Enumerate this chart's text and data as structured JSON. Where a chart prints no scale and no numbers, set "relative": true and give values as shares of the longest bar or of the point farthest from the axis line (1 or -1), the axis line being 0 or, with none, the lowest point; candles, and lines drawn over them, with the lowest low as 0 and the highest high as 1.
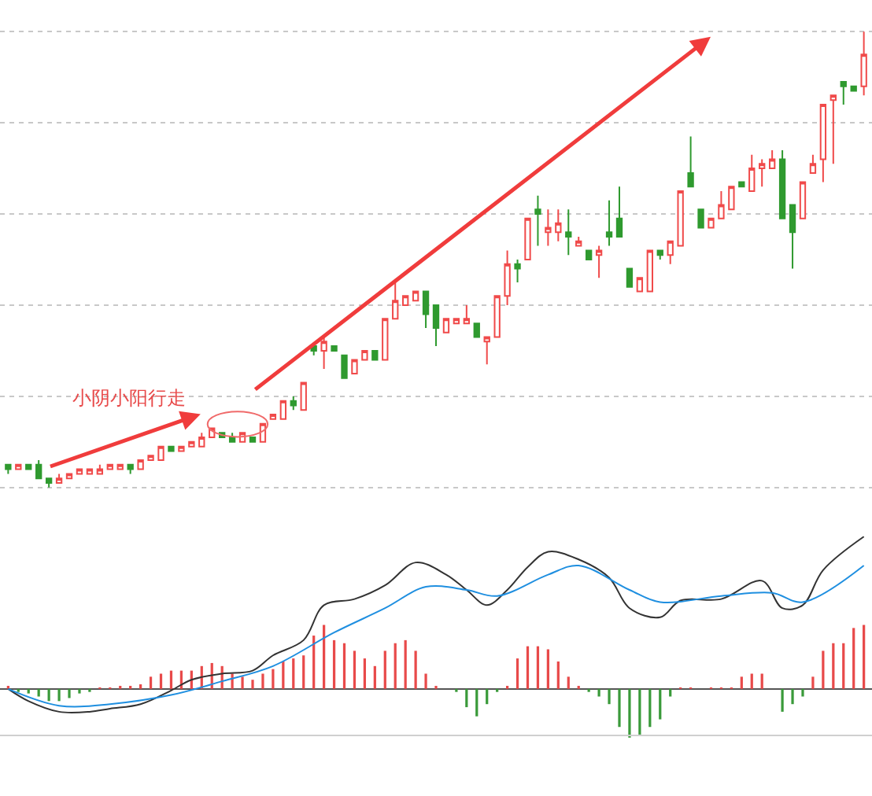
{
  "chart_data": [
    {
      "type": "candlestick",
      "relative": true,
      "grid": "y",
      "legend": false,
      "annotations": [
        "小阴小阳行走"
      ],
      "categories": [
        null,
        null,
        null,
        null,
        null,
        null,
        null,
        null,
        null,
        null,
        null,
        null,
        null,
        null,
        null,
        null,
        null,
        null,
        null,
        null,
        null,
        null,
        null,
        null,
        null,
        null,
        null,
        null,
        null,
        null,
        null,
        null,
        null,
        null,
        null,
        null,
        null,
        null,
        null,
        null,
        null,
        null,
        null,
        null,
        null,
        null,
        null,
        null,
        null,
        null,
        null,
        null,
        null,
        null,
        null,
        null,
        null,
        null,
        null,
        null,
        null,
        null,
        null,
        null,
        null,
        null,
        null,
        null,
        null,
        null,
        null,
        null,
        null,
        null,
        null,
        null,
        null,
        null,
        null,
        null,
        null,
        null,
        null,
        null,
        null
      ],
      "series": [
        {
          "colors": [
            "#2f9a2f",
            "#f04a4a",
            "#2f9a2f",
            "#2f9a2f",
            "#2f9a2f",
            "#f04a4a",
            "#f04a4a",
            "#f04a4a",
            "#f04a4a",
            "#f04a4a",
            "#f04a4a",
            "#f04a4a",
            "#2f9a2f",
            "#f04a4a",
            "#f04a4a",
            "#f04a4a",
            "#2f9a2f",
            "#f04a4a",
            "#f04a4a",
            "#f04a4a",
            "#f04a4a",
            "#2f9a2f",
            "#2f9a2f",
            "#f04a4a",
            "#2f9a2f",
            "#f04a4a",
            "#f04a4a",
            "#f04a4a",
            "#2f9a2f",
            "#f04a4a",
            "#2f9a2f",
            "#f04a4a",
            "#2f9a2f",
            "#2f9a2f",
            "#f04a4a",
            "#f04a4a",
            "#2f9a2f",
            "#f04a4a",
            "#f04a4a",
            "#f04a4a",
            "#f04a4a",
            "#2f9a2f",
            "#2f9a2f",
            "#f04a4a",
            "#f04a4a",
            "#f04a4a",
            "#2f9a2f",
            "#f04a4a",
            "#f04a4a",
            "#f04a4a",
            "#2f9a2f",
            "#f04a4a",
            "#2f9a2f",
            "#f04a4a",
            "#f04a4a",
            "#2f9a2f",
            "#f04a4a",
            "#2f9a2f",
            "#f04a4a",
            "#2f9a2f",
            "#2f9a2f",
            "#2f9a2f",
            "#f04a4a",
            "#f04a4a",
            "#2f9a2f",
            "#f04a4a",
            "#f04a4a",
            "#2f9a2f",
            "#2f9a2f",
            "#f04a4a",
            "#f04a4a",
            "#f04a4a",
            "#2f9a2f",
            "#f04a4a",
            "#f04a4a",
            "#f04a4a",
            "#2f9a2f",
            "#2f9a2f",
            "#f04a4a",
            "#f04a4a",
            "#f04a4a",
            "#f04a4a",
            "#2f9a2f",
            "#2f9a2f",
            "#f04a4a"
          ],
          "ohlc": [
            [
              0.05,
              0.05,
              0.03,
              0.04
            ],
            [
              0.04,
              0.05,
              0.04,
              0.05
            ],
            [
              0.05,
              0.05,
              0.04,
              0.04
            ],
            [
              0.05,
              0.06,
              0.02,
              0.02
            ],
            [
              0.02,
              0.02,
              0,
              0.01
            ],
            [
              0.01,
              0.03,
              0.01,
              0.02
            ],
            [
              0.02,
              0.03,
              0.02,
              0.03
            ],
            [
              0.03,
              0.04,
              0.03,
              0.04
            ],
            [
              0.03,
              0.04,
              0.03,
              0.04
            ],
            [
              0.03,
              0.05,
              0.03,
              0.04
            ],
            [
              0.04,
              0.05,
              0.04,
              0.05
            ],
            [
              0.04,
              0.05,
              0.04,
              0.05
            ],
            [
              0.05,
              0.05,
              0.03,
              0.04
            ],
            [
              0.04,
              0.06,
              0.04,
              0.06
            ],
            [
              0.06,
              0.07,
              0.06,
              0.07
            ],
            [
              0.06,
              0.09,
              0.06,
              0.09
            ],
            [
              0.09,
              0.09,
              0.08,
              0.08
            ],
            [
              0.08,
              0.09,
              0.08,
              0.09
            ],
            [
              0.09,
              0.1,
              0.09,
              0.1
            ],
            [
              0.09,
              0.12,
              0.09,
              0.11
            ],
            [
              0.11,
              0.13,
              0.11,
              0.13
            ],
            [
              0.12,
              0.12,
              0.11,
              0.11
            ],
            [
              0.11,
              0.12,
              0.1,
              0.1
            ],
            [
              0.1,
              0.12,
              0.1,
              0.12
            ],
            [
              0.11,
              0.11,
              0.1,
              0.1
            ],
            [
              0.1,
              0.14,
              0.1,
              0.14
            ],
            [
              0.15,
              0.16,
              0.15,
              0.16
            ],
            [
              0.15,
              0.19,
              0.15,
              0.19
            ],
            [
              0.19,
              0.2,
              0.17,
              0.18
            ],
            [
              0.17,
              0.23,
              0.17,
              0.23
            ],
            [
              0.31,
              0.31,
              0.29,
              0.3
            ],
            [
              0.3,
              0.33,
              0.26,
              0.32
            ],
            [
              0.31,
              0.31,
              0.3,
              0.3
            ],
            [
              0.29,
              0.29,
              0.24,
              0.24
            ],
            [
              0.25,
              0.28,
              0.25,
              0.28
            ],
            [
              0.28,
              0.3,
              0.28,
              0.3
            ],
            [
              0.3,
              0.3,
              0.28,
              0.28
            ],
            [
              0.28,
              0.37,
              0.28,
              0.37
            ],
            [
              0.37,
              0.45,
              0.37,
              0.41
            ],
            [
              0.4,
              0.42,
              0.4,
              0.42
            ],
            [
              0.41,
              0.43,
              0.41,
              0.43
            ],
            [
              0.43,
              0.43,
              0.35,
              0.38
            ],
            [
              0.4,
              0.4,
              0.31,
              0.35
            ],
            [
              0.34,
              0.37,
              0.34,
              0.37
            ],
            [
              0.36,
              0.37,
              0.36,
              0.37
            ],
            [
              0.36,
              0.4,
              0.36,
              0.37
            ],
            [
              0.36,
              0.36,
              0.33,
              0.33
            ],
            [
              0.32,
              0.33,
              0.27,
              0.33
            ],
            [
              0.33,
              0.42,
              0.33,
              0.42
            ],
            [
              0.42,
              0.52,
              0.4,
              0.49
            ],
            [
              0.49,
              0.5,
              0.45,
              0.48
            ],
            [
              0.5,
              0.59,
              0.5,
              0.59
            ],
            [
              0.61,
              0.64,
              0.53,
              0.6
            ],
            [
              0.56,
              0.61,
              0.53,
              0.57
            ],
            [
              0.56,
              0.61,
              0.54,
              0.58
            ],
            [
              0.56,
              0.61,
              0.51,
              0.55
            ],
            [
              0.53,
              0.55,
              0.53,
              0.54
            ],
            [
              0.52,
              0.52,
              0.5,
              0.5
            ],
            [
              0.51,
              0.53,
              0.46,
              0.52
            ],
            [
              0.56,
              0.63,
              0.53,
              0.55
            ],
            [
              0.59,
              0.66,
              0.55,
              0.55
            ],
            [
              0.48,
              0.48,
              0.44,
              0.44
            ],
            [
              0.43,
              0.46,
              0.43,
              0.46
            ],
            [
              0.43,
              0.52,
              0.43,
              0.52
            ],
            [
              0.52,
              0.52,
              0.5,
              0.51
            ],
            [
              0.51,
              0.54,
              0.49,
              0.54
            ],
            [
              0.53,
              0.65,
              0.53,
              0.65
            ],
            [
              0.69,
              0.77,
              0.66,
              0.66
            ],
            [
              0.61,
              0.61,
              0.57,
              0.57
            ],
            [
              0.57,
              0.59,
              0.57,
              0.59
            ],
            [
              0.59,
              0.65,
              0.59,
              0.62
            ],
            [
              0.61,
              0.66,
              0.61,
              0.66
            ],
            [
              0.67,
              0.67,
              0.66,
              0.66
            ],
            [
              0.65,
              0.73,
              0.65,
              0.7
            ],
            [
              0.7,
              0.72,
              0.66,
              0.71
            ],
            [
              0.7,
              0.74,
              0.7,
              0.72
            ],
            [
              0.72,
              0.74,
              0.59,
              0.59
            ],
            [
              0.62,
              0.62,
              0.48,
              0.56
            ],
            [
              0.59,
              0.67,
              0.59,
              0.67
            ],
            [
              0.69,
              0.73,
              0.69,
              0.71
            ],
            [
              0.72,
              0.84,
              0.67,
              0.84
            ],
            [
              0.85,
              0.86,
              0.71,
              0.86
            ],
            [
              0.89,
              0.89,
              0.84,
              0.88
            ],
            [
              0.88,
              0.88,
              0.87,
              0.87
            ],
            [
              0.88,
              1,
              0.86,
              0.95
            ]
          ]
        }
      ]
    },
    {
      "type": "bar",
      "relative": true,
      "legend": false,
      "categories": [
        null,
        null,
        null,
        null,
        null,
        null,
        null,
        null,
        null,
        null,
        null,
        null,
        null,
        null,
        null,
        null,
        null,
        null,
        null,
        null,
        null,
        null,
        null,
        null,
        null,
        null,
        null,
        null,
        null,
        null,
        null,
        null,
        null,
        null,
        null,
        null,
        null,
        null,
        null,
        null,
        null,
        null,
        null,
        null,
        null,
        null,
        null,
        null,
        null,
        null,
        null,
        null,
        null,
        null,
        null,
        null,
        null,
        null,
        null,
        null,
        null,
        null,
        null,
        null,
        null,
        null,
        null,
        null,
        null,
        null,
        null,
        null,
        null,
        null,
        null,
        null,
        null,
        null,
        null,
        null,
        null,
        null,
        null,
        null,
        null
      ],
      "series": [
        {
          "type": "bar",
          "values": [
            0.02,
            -0.02,
            -0.03,
            -0.05,
            -0.08,
            -0.08,
            -0.06,
            -0.03,
            -0.02,
            0.01,
            0.01,
            0.02,
            0.02,
            0.03,
            0.08,
            0.1,
            0.12,
            0.12,
            0.12,
            0.15,
            0.17,
            0.15,
            0.1,
            0.08,
            0.06,
            0.1,
            0.13,
            0.18,
            0.2,
            0.22,
            0.35,
            0.42,
            0.32,
            0.3,
            0.25,
            0.2,
            0.15,
            0.25,
            0.3,
            0.32,
            0.25,
            0.1,
            0.02,
            0,
            -0.02,
            -0.12,
            -0.18,
            -0.1,
            -0.02,
            0.02,
            0.2,
            0.28,
            0.28,
            0.26,
            0.18,
            0.08,
            0.02,
            -0.02,
            -0.05,
            -0.1,
            -0.25,
            -0.32,
            -0.3,
            -0.25,
            -0.2,
            -0.05,
            0.01,
            0.01,
            0,
            0.01,
            0.01,
            0.01,
            0.08,
            0.1,
            0.1,
            0,
            -0.15,
            -0.1,
            -0.05,
            0.08,
            0.25,
            0.3,
            0.3,
            0.4,
            0.42
          ],
          "colors": [
            "#e84a4a",
            "#3a9a3a",
            "#3a9a3a",
            "#3a9a3a",
            "#3a9a3a",
            "#3a9a3a",
            "#3a9a3a",
            "#3a9a3a",
            "#3a9a3a",
            "#e84a4a",
            "#e84a4a",
            "#e84a4a",
            "#e84a4a",
            "#e84a4a",
            "#e84a4a",
            "#e84a4a",
            "#e84a4a",
            "#e84a4a",
            "#e84a4a",
            "#e84a4a",
            "#e84a4a",
            "#e84a4a",
            "#e84a4a",
            "#e84a4a",
            "#e84a4a",
            "#e84a4a",
            "#e84a4a",
            "#e84a4a",
            "#e84a4a",
            "#e84a4a",
            "#e84a4a",
            "#e84a4a",
            "#e84a4a",
            "#e84a4a",
            "#e84a4a",
            "#e84a4a",
            "#e84a4a",
            "#e84a4a",
            "#e84a4a",
            "#e84a4a",
            "#e84a4a",
            "#e84a4a",
            "#e84a4a",
            "#e84a4a",
            "#3a9a3a",
            "#3a9a3a",
            "#3a9a3a",
            "#3a9a3a",
            "#3a9a3a",
            "#e84a4a",
            "#e84a4a",
            "#e84a4a",
            "#e84a4a",
            "#e84a4a",
            "#e84a4a",
            "#e84a4a",
            "#e84a4a",
            "#3a9a3a",
            "#3a9a3a",
            "#3a9a3a",
            "#3a9a3a",
            "#3a9a3a",
            "#3a9a3a",
            "#3a9a3a",
            "#3a9a3a",
            "#3a9a3a",
            "#e84a4a",
            "#e84a4a",
            "#e84a4a",
            "#e84a4a",
            "#e84a4a",
            "#e84a4a",
            "#e84a4a",
            "#e84a4a",
            "#e84a4a",
            "#e84a4a",
            "#3a9a3a",
            "#3a9a3a",
            "#3a9a3a",
            "#e84a4a",
            "#e84a4a",
            "#e84a4a",
            "#e84a4a",
            "#e84a4a",
            "#e84a4a"
          ]
        },
        {
          "type": "line",
          "color": "#333333",
          "values": [
            0,
            null,
            -0.08,
            null,
            null,
            -0.15,
            null,
            null,
            -0.15,
            null,
            -0.13,
            null,
            null,
            -0.1,
            null,
            null,
            -0.01,
            null,
            0.06,
            null,
            null,
            0.1,
            null,
            null,
            0.12,
            null,
            0.22,
            null,
            null,
            0.32,
            null,
            0.55,
            null,
            null,
            0.59,
            null,
            null,
            0.68,
            null,
            null,
            0.83,
            null,
            null,
            0.75,
            null,
            0.65,
            null,
            0.55,
            null,
            0.65,
            null,
            0.8,
            null,
            0.9,
            null,
            null,
            0.85,
            null,
            null,
            0.73,
            null,
            0.53,
            null,
            null,
            0.47,
            null,
            0.58,
            null,
            null,
            null,
            0.59,
            null,
            null,
            null,
            0.71,
            null,
            0.53,
            null,
            0.55,
            null,
            0.78,
            null,
            null,
            null,
            1
          ]
        },
        {
          "type": "line",
          "color": "#1f8fe0",
          "values": [
            0,
            null,
            null,
            null,
            null,
            -0.11,
            null,
            null,
            null,
            null,
            -0.1,
            null,
            null,
            null,
            null,
            null,
            -0.04,
            null,
            null,
            null,
            null,
            0.05,
            null,
            null,
            null,
            null,
            0.15,
            null,
            null,
            null,
            null,
            null,
            0.37,
            null,
            null,
            null,
            null,
            0.53,
            null,
            null,
            null,
            0.67,
            null,
            null,
            null,
            0.65,
            null,
            null,
            0.61,
            null,
            null,
            null,
            null,
            0.75,
            null,
            null,
            0.81,
            null,
            null,
            null,
            null,
            0.65,
            null,
            null,
            0.57,
            null,
            null,
            null,
            null,
            null,
            0.61,
            null,
            null,
            null,
            null,
            0.63,
            null,
            null,
            0.57,
            null,
            null,
            null,
            null,
            null,
            0.81
          ]
        }
      ]
    }
  ]
}
